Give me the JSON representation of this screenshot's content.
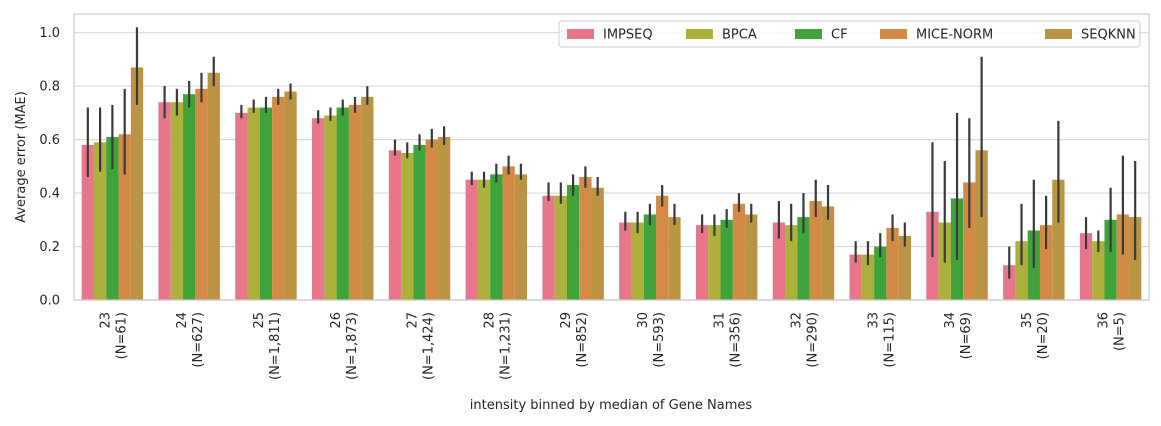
{
  "chart_data": {
    "type": "bar",
    "title": "",
    "xlabel": "intensity binned by median of Gene Names",
    "ylabel": "Average error (MAE)",
    "ylim": [
      0,
      1.07
    ],
    "yticks": [
      "0.0",
      "0.2",
      "0.4",
      "0.6",
      "0.8",
      "1.0"
    ],
    "grid": true,
    "legend_position": "top-right",
    "categories": [
      [
        "23",
        "(N=61)"
      ],
      [
        "24",
        "(N=627)"
      ],
      [
        "25",
        "(N=1,811)"
      ],
      [
        "26",
        "(N=1,873)"
      ],
      [
        "27",
        "(N=1,424)"
      ],
      [
        "28",
        "(N=1,231)"
      ],
      [
        "29",
        "(N=852)"
      ],
      [
        "30",
        "(N=593)"
      ],
      [
        "31",
        "(N=356)"
      ],
      [
        "32",
        "(N=290)"
      ],
      [
        "33",
        "(N=115)"
      ],
      [
        "34",
        "(N=69)"
      ],
      [
        "35",
        "(N=20)"
      ],
      [
        "36",
        "(N=5)"
      ]
    ],
    "series": [
      {
        "name": "IMPSEQ",
        "color": "#e8768b",
        "values": [
          0.58,
          0.74,
          0.7,
          0.68,
          0.56,
          0.45,
          0.39,
          0.29,
          0.28,
          0.29,
          0.17,
          0.33,
          0.13,
          0.25
        ],
        "err_low": [
          0.46,
          0.68,
          0.68,
          0.66,
          0.54,
          0.43,
          0.37,
          0.26,
          0.25,
          0.23,
          0.14,
          0.16,
          0.08,
          0.19
        ],
        "err_high": [
          0.72,
          0.8,
          0.73,
          0.71,
          0.6,
          0.48,
          0.44,
          0.33,
          0.32,
          0.37,
          0.22,
          0.59,
          0.2,
          0.31
        ]
      },
      {
        "name": "BPCA",
        "color": "#adb03b",
        "values": [
          0.59,
          0.74,
          0.72,
          0.69,
          0.55,
          0.45,
          0.39,
          0.29,
          0.28,
          0.28,
          0.17,
          0.29,
          0.22,
          0.22
        ],
        "err_low": [
          0.48,
          0.69,
          0.7,
          0.67,
          0.53,
          0.42,
          0.36,
          0.25,
          0.24,
          0.22,
          0.13,
          0.14,
          0.13,
          0.18
        ],
        "err_high": [
          0.72,
          0.79,
          0.75,
          0.72,
          0.59,
          0.48,
          0.44,
          0.33,
          0.32,
          0.36,
          0.22,
          0.52,
          0.36,
          0.26
        ]
      },
      {
        "name": "CF",
        "color": "#3fa23b",
        "values": [
          0.61,
          0.77,
          0.72,
          0.72,
          0.58,
          0.47,
          0.43,
          0.32,
          0.3,
          0.31,
          0.2,
          0.38,
          0.26,
          0.3
        ],
        "err_low": [
          0.49,
          0.72,
          0.7,
          0.69,
          0.56,
          0.44,
          0.39,
          0.28,
          0.27,
          0.25,
          0.16,
          0.15,
          0.12,
          0.18
        ],
        "err_high": [
          0.73,
          0.82,
          0.76,
          0.75,
          0.62,
          0.51,
          0.47,
          0.36,
          0.34,
          0.4,
          0.25,
          0.7,
          0.45,
          0.42
        ]
      },
      {
        "name": "MICE-NORM",
        "color": "#d28b46",
        "values": [
          0.62,
          0.79,
          0.76,
          0.73,
          0.6,
          0.5,
          0.46,
          0.39,
          0.36,
          0.37,
          0.27,
          0.44,
          0.28,
          0.32
        ],
        "err_low": [
          0.47,
          0.74,
          0.73,
          0.7,
          0.57,
          0.47,
          0.42,
          0.35,
          0.33,
          0.31,
          0.22,
          0.27,
          0.19,
          0.17
        ],
        "err_high": [
          0.79,
          0.85,
          0.79,
          0.76,
          0.64,
          0.54,
          0.5,
          0.43,
          0.4,
          0.45,
          0.32,
          0.68,
          0.39,
          0.54
        ]
      },
      {
        "name": "SEQKNN",
        "color": "#bb9443",
        "values": [
          0.87,
          0.85,
          0.78,
          0.76,
          0.61,
          0.47,
          0.42,
          0.31,
          0.32,
          0.35,
          0.24,
          0.56,
          0.45,
          0.31
        ],
        "err_low": [
          0.73,
          0.8,
          0.75,
          0.73,
          0.58,
          0.45,
          0.39,
          0.28,
          0.29,
          0.3,
          0.2,
          0.31,
          0.29,
          0.15
        ],
        "err_high": [
          1.02,
          0.91,
          0.81,
          0.8,
          0.65,
          0.51,
          0.46,
          0.36,
          0.36,
          0.43,
          0.29,
          0.91,
          0.67,
          0.52
        ]
      }
    ]
  }
}
